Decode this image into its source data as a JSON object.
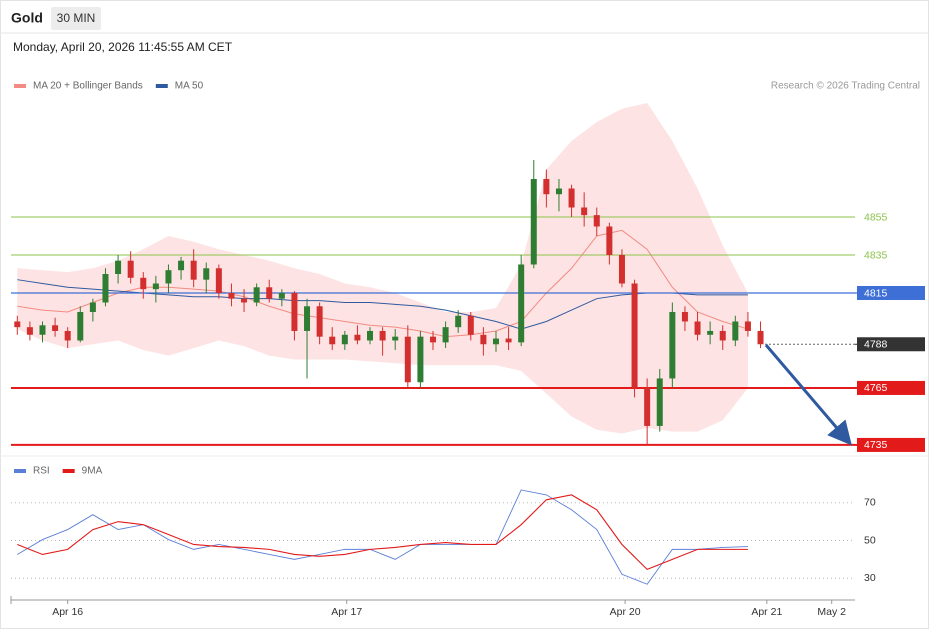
{
  "header": {
    "symbol": "Gold",
    "interval": "30 MIN",
    "timestamp": "Monday, April 20, 2026 11:45:55 AM CET",
    "credit": "Research © 2026 Trading Central"
  },
  "chart_data": [
    {
      "type": "candlestick",
      "up_color": "#2e7d32",
      "down_color": "#d32f2f",
      "xlim": [
        0,
        134
      ],
      "ylim": [
        4729.7,
        4916.6
      ],
      "x": [
        1,
        3,
        5,
        7,
        9,
        11,
        13,
        15,
        17,
        19,
        21,
        23,
        25,
        27,
        29,
        31,
        33,
        35,
        37,
        39,
        41,
        43,
        45,
        47,
        49,
        51,
        53,
        55,
        57,
        59,
        61,
        63,
        65,
        67,
        69,
        71,
        73,
        75,
        77,
        79,
        81,
        83,
        85,
        87,
        89,
        91,
        93,
        95,
        97,
        99,
        101,
        103,
        105,
        107,
        109,
        111,
        113,
        115,
        117,
        119
      ],
      "open": [
        4800,
        4797,
        4793,
        4798,
        4795,
        4790,
        4805,
        4810,
        4825,
        4832,
        4823,
        4817,
        4820,
        4827,
        4832,
        4822,
        4828,
        4815,
        4812,
        4810,
        4818,
        4812,
        4815,
        4795,
        4808,
        4792,
        4788,
        4793,
        4790,
        4795,
        4790,
        4792,
        4768,
        4792,
        4789,
        4797,
        4803,
        4793,
        4788,
        4791,
        4789,
        4830,
        4875,
        4867,
        4870,
        4860,
        4856,
        4850,
        4835,
        4820,
        4765,
        4745,
        4770,
        4805,
        4800,
        4793,
        4795,
        4790,
        4800,
        4795
      ],
      "high": [
        4803,
        4800,
        4800,
        4802,
        4797,
        4808,
        4812,
        4828,
        4835,
        4837,
        4826,
        4824,
        4830,
        4834,
        4838,
        4831,
        4830,
        4820,
        4817,
        4820,
        4822,
        4817,
        4816,
        4812,
        4810,
        4797,
        4795,
        4798,
        4797,
        4797,
        4796,
        4798,
        4795,
        4795,
        4800,
        4806,
        4805,
        4797,
        4795,
        4797,
        4835,
        4885,
        4880,
        4875,
        4872,
        4868,
        4860,
        4852,
        4838,
        4822,
        4770,
        4775,
        4810,
        4808,
        4805,
        4800,
        4798,
        4803,
        4805,
        4800
      ],
      "low": [
        4793,
        4790,
        4789,
        4792,
        4786,
        4789,
        4800,
        4808,
        4820,
        4820,
        4812,
        4810,
        4815,
        4822,
        4818,
        4815,
        4812,
        4808,
        4805,
        4808,
        4810,
        4808,
        4790,
        4770,
        4788,
        4785,
        4785,
        4788,
        4788,
        4782,
        4785,
        4765,
        4765,
        4785,
        4786,
        4794,
        4790,
        4782,
        4784,
        4785,
        4787,
        4828,
        4860,
        4858,
        4855,
        4850,
        4845,
        4830,
        4818,
        4760,
        4735,
        4742,
        4765,
        4795,
        4790,
        4788,
        4785,
        4787,
        4792,
        4786
      ],
      "close": [
        4797,
        4793,
        4798,
        4795,
        4790,
        4805,
        4810,
        4825,
        4832,
        4823,
        4817,
        4820,
        4827,
        4832,
        4822,
        4828,
        4815,
        4812,
        4810,
        4818,
        4812,
        4815,
        4795,
        4808,
        4792,
        4788,
        4793,
        4790,
        4795,
        4790,
        4792,
        4768,
        4792,
        4789,
        4797,
        4803,
        4793,
        4788,
        4791,
        4789,
        4830,
        4875,
        4867,
        4870,
        4860,
        4856,
        4850,
        4835,
        4820,
        4765,
        4745,
        4770,
        4805,
        4800,
        4793,
        4795,
        4790,
        4800,
        4795,
        4788
      ],
      "series": [
        {
          "name": "MA 20 + Bollinger Bands",
          "color": "#f28b82",
          "band_color": "#fde3e3",
          "x": [
            1,
            5,
            9,
            13,
            17,
            21,
            25,
            29,
            33,
            37,
            41,
            45,
            49,
            53,
            57,
            61,
            65,
            69,
            73,
            77,
            81,
            85,
            89,
            93,
            97,
            101,
            105,
            109,
            113,
            117
          ],
          "values": [
            4808,
            4806,
            4805,
            4810,
            4815,
            4818,
            4818,
            4817,
            4816,
            4813,
            4808,
            4804,
            4802,
            4800,
            4798,
            4797,
            4795,
            4792,
            4793,
            4795,
            4800,
            4815,
            4828,
            4845,
            4848,
            4838,
            4818,
            4805,
            4800,
            4796
          ],
          "upper": [
            4828,
            4827,
            4826,
            4828,
            4832,
            4838,
            4845,
            4842,
            4838,
            4835,
            4832,
            4828,
            4825,
            4820,
            4818,
            4815,
            4810,
            4805,
            4805,
            4807,
            4830,
            4880,
            4895,
            4905,
            4912,
            4915,
            4895,
            4870,
            4840,
            4815
          ],
          "lower": [
            4796,
            4790,
            4786,
            4788,
            4790,
            4785,
            4782,
            4786,
            4790,
            4787,
            4782,
            4780,
            4780,
            4780,
            4779,
            4778,
            4777,
            4777,
            4777,
            4777,
            4774,
            4762,
            4750,
            4743,
            4741,
            4744,
            4742,
            4742,
            4748,
            4765
          ]
        },
        {
          "name": "MA 50",
          "color": "#2f5aa0",
          "x": [
            1,
            5,
            9,
            13,
            17,
            21,
            25,
            29,
            33,
            37,
            41,
            45,
            49,
            53,
            57,
            61,
            65,
            69,
            73,
            77,
            81,
            85,
            89,
            93,
            97,
            101,
            105,
            109,
            113,
            117
          ],
          "values": [
            4822,
            4820,
            4818,
            4817,
            4816,
            4815,
            4814,
            4813,
            4813,
            4812,
            4812,
            4811,
            4811,
            4810,
            4810,
            4809,
            4808,
            4806,
            4803,
            4800,
            4796,
            4800,
            4806,
            4812,
            4814,
            4815,
            4815,
            4814,
            4814,
            4814
          ]
        }
      ],
      "levels": [
        {
          "value": 4855,
          "color": "#8bc34a",
          "boxed": false,
          "style": "solid",
          "width": 1
        },
        {
          "value": 4835,
          "color": "#8bc34a",
          "boxed": false,
          "style": "solid",
          "width": 1
        },
        {
          "value": 4815,
          "color": "#3d6fd6",
          "boxed": true,
          "style": "solid",
          "width": 1.2
        },
        {
          "value": 4788,
          "color": "#333333",
          "boxed": true,
          "style": "dotted",
          "width": 1
        },
        {
          "value": 4765,
          "color": "#e31a1a",
          "boxed": true,
          "style": "solid",
          "width": 2
        },
        {
          "value": 4735,
          "color": "#e31a1a",
          "boxed": true,
          "style": "solid",
          "width": 2
        }
      ]
    },
    {
      "type": "line",
      "xlim": [
        0,
        134
      ],
      "ylim": [
        19.5,
        87.4
      ],
      "yticks": [
        30,
        50,
        70
      ],
      "grid": true,
      "xticks": [
        {
          "value": 9,
          "label": "Apr 16"
        },
        {
          "value": 53.3,
          "label": "Apr 17"
        },
        {
          "value": 97.5,
          "label": "Apr 20"
        },
        {
          "value": 120,
          "label": "Apr 21"
        },
        {
          "value": 130.3,
          "label": "May 2"
        }
      ],
      "series": [
        {
          "name": "RSI",
          "color": "#5b7fd6",
          "x": [
            1,
            5,
            9,
            13,
            17,
            21,
            25,
            29,
            33,
            37,
            41,
            45,
            49,
            53,
            57,
            61,
            65,
            69,
            73,
            77,
            81,
            85,
            89,
            93,
            97,
            101,
            105,
            109,
            113,
            117
          ],
          "values": [
            42.6,
            50.5,
            55.8,
            63.7,
            55.8,
            58.4,
            50.5,
            45.3,
            47.9,
            45.3,
            42.6,
            40,
            42.6,
            45.3,
            45.3,
            40,
            47.9,
            47.9,
            47.9,
            47.9,
            76.8,
            74.2,
            66.3,
            55.8,
            32.1,
            26.8,
            45.3,
            45.3,
            46.3,
            46.8
          ]
        },
        {
          "name": "9MA",
          "color": "#e31a1a",
          "x": [
            1,
            5,
            9,
            13,
            17,
            21,
            25,
            29,
            33,
            37,
            41,
            45,
            49,
            53,
            57,
            61,
            65,
            69,
            73,
            77,
            81,
            85,
            89,
            93,
            97,
            101,
            105,
            109,
            113,
            117
          ],
          "values": [
            47.9,
            42.6,
            45.3,
            55.8,
            60,
            58.4,
            53.2,
            47.9,
            46.8,
            46.3,
            45.3,
            42.6,
            41.6,
            42.6,
            45.3,
            46.3,
            47.9,
            48.9,
            47.9,
            47.9,
            58.4,
            71.6,
            74.2,
            66.3,
            47.9,
            34.7,
            40,
            45.3,
            45.3,
            45.3
          ]
        }
      ]
    }
  ]
}
